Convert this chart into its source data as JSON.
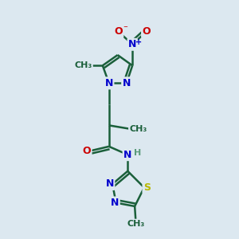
{
  "bg_color": "#dce8f0",
  "bond_color": "#1a5f3a",
  "bond_width": 1.8,
  "atom_colors": {
    "C": "#1a5f3a",
    "N": "#0000cc",
    "O": "#cc0000",
    "S": "#b8b800",
    "H": "#5a9a7a"
  },
  "font_size": 9,
  "figsize": [
    3.0,
    3.0
  ],
  "dpi": 100,
  "xlim": [
    0,
    10
  ],
  "ylim": [
    0,
    10
  ]
}
